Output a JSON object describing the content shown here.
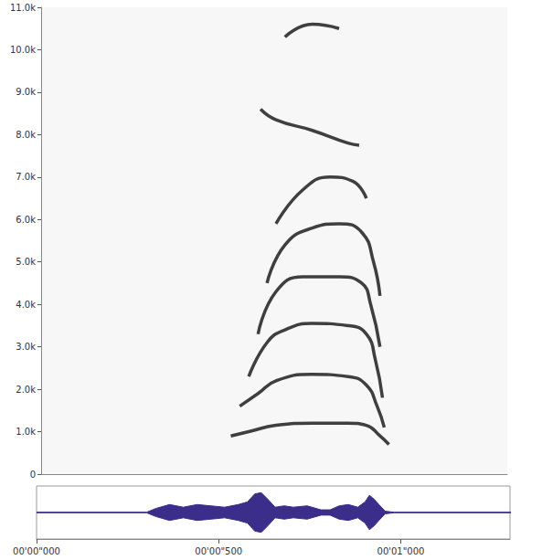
{
  "chart_data": [
    {
      "type": "spectrogram",
      "color": "#1e1e1e",
      "grid": false,
      "tick_labels": "y",
      "xlim": [
        0,
        1.3
      ],
      "ylim": [
        0,
        11000
      ],
      "yticks": [
        0,
        {
          "value": 1000,
          "label": "1.0k"
        },
        {
          "value": 2000,
          "label": "2.0k"
        },
        {
          "value": 3000,
          "label": "3.0k"
        },
        {
          "value": 4000,
          "label": "4.0k"
        },
        {
          "value": 5000,
          "label": "5.0k"
        },
        {
          "value": 6000,
          "label": "6.0k"
        },
        {
          "value": 7000,
          "label": "7.0k"
        },
        {
          "value": 8000,
          "label": "8.0k"
        },
        {
          "value": 9000,
          "label": "9.0k"
        },
        {
          "value": 10000,
          "label": "10.0k"
        },
        {
          "value": 11000,
          "label": "11.0k"
        }
      ],
      "series": [
        {
          "x": [
            0.529,
            0.579,
            0.655,
            0.756,
            0.856,
            0.907,
            0.945,
            0.97
          ],
          "values": [
            900,
            1000,
            1150,
            1200,
            1200,
            1150,
            900,
            700
          ]
        },
        {
          "x": [
            0.554,
            0.605,
            0.655,
            0.756,
            0.856,
            0.907,
            0.937,
            0.957
          ],
          "values": [
            1600,
            1900,
            2200,
            2350,
            2300,
            2100,
            1600,
            1100
          ]
        },
        {
          "x": [
            0.579,
            0.63,
            0.68,
            0.756,
            0.856,
            0.907,
            0.932,
            0.952
          ],
          "values": [
            2300,
            3100,
            3400,
            3550,
            3500,
            3300,
            2700,
            1800
          ]
        },
        {
          "x": [
            0.605,
            0.655,
            0.73,
            0.831,
            0.894,
            0.919,
            0.945
          ],
          "values": [
            3300,
            4300,
            4650,
            4650,
            4500,
            4000,
            3000
          ]
        },
        {
          "x": [
            0.63,
            0.68,
            0.756,
            0.831,
            0.894,
            0.927,
            0.945
          ],
          "values": [
            4500,
            5400,
            5800,
            5900,
            5700,
            5000,
            4200
          ]
        },
        {
          "x": [
            0.655,
            0.73,
            0.806,
            0.869,
            0.907
          ],
          "values": [
            5900,
            6700,
            7000,
            6900,
            6500
          ]
        },
        {
          "x": [
            0.612,
            0.655,
            0.756,
            0.856,
            0.887
          ],
          "values": [
            8600,
            8350,
            8100,
            7800,
            7750
          ]
        },
        {
          "x": [
            0.68,
            0.756,
            0.831
          ],
          "values": [
            10300,
            10600,
            10500
          ]
        }
      ]
    },
    {
      "type": "waveform",
      "color": "#3b2d8a",
      "grid": false,
      "tick_labels": "x",
      "xlim": [
        0,
        1.3
      ],
      "ylim": [
        -1,
        1
      ],
      "xticks": [
        {
          "value": 0,
          "label": "00'00\"000"
        },
        {
          "value": 0.5,
          "label": "00'00\"500"
        },
        {
          "value": 1.0,
          "label": "00'01\"000"
        }
      ],
      "x": [
        0,
        0.302,
        0.327,
        0.365,
        0.403,
        0.441,
        0.479,
        0.516,
        0.554,
        0.579,
        0.599,
        0.617,
        0.635,
        0.655,
        0.68,
        0.705,
        0.743,
        0.781,
        0.806,
        0.831,
        0.856,
        0.882,
        0.902,
        0.914,
        0.927,
        0.94,
        0.957,
        0.982,
        1.305
      ],
      "upper": [
        0.01,
        0.01,
        0.15,
        0.3,
        0.2,
        0.3,
        0.25,
        0.2,
        0.3,
        0.4,
        0.7,
        0.75,
        0.5,
        0.2,
        0.25,
        0.2,
        0.25,
        0.1,
        0.1,
        0.25,
        0.3,
        0.2,
        0.4,
        0.65,
        0.5,
        0.3,
        0.05,
        0.01,
        0.01
      ],
      "lower": [
        -0.01,
        -0.01,
        -0.15,
        -0.3,
        -0.2,
        -0.3,
        -0.25,
        -0.2,
        -0.3,
        -0.4,
        -0.7,
        -0.75,
        -0.5,
        -0.2,
        -0.25,
        -0.2,
        -0.25,
        -0.1,
        -0.1,
        -0.25,
        -0.3,
        -0.2,
        -0.4,
        -0.65,
        -0.5,
        -0.3,
        -0.05,
        -0.01,
        -0.01
      ]
    }
  ]
}
